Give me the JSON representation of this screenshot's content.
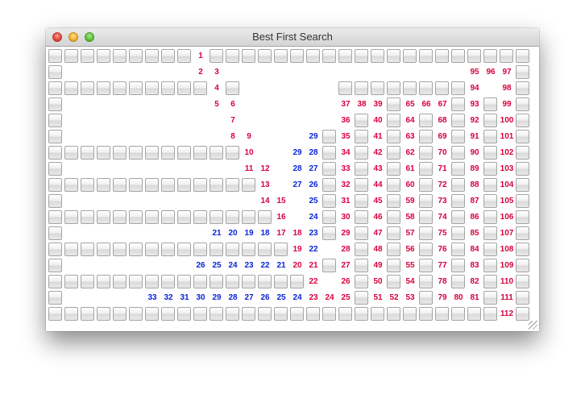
{
  "window": {
    "title": "Best First Search"
  },
  "colors": {
    "red": "#d8003c",
    "blue": "#0a24d6"
  },
  "legend": {
    "red_meaning": "red-label",
    "blue_meaning": "blue-label"
  },
  "rows": [
    "###########1##################.....###",
    "#..........23....................959697#",
    "#########..4#..........................#",
    "#..........56#..........................#"
  ],
  "grid": {
    "wall_rows": [
      "###################################.....###",
      "#............................#",
      "##########.##..##########.#",
      "#...........#.#.#.#.#.#.#.#.##",
      "##########.#..#.#.#.#.#.#.#.##",
      "#...........#.#.#.#.#.#.#.#.##"
    ]
  },
  "cells": [
    {
      "r": 0,
      "c": 9,
      "t": "1",
      "k": "red"
    },
    {
      "r": 1,
      "c": 9,
      "t": "2",
      "k": "red"
    },
    {
      "r": 1,
      "c": 10,
      "t": "3",
      "k": "red"
    },
    {
      "r": 1,
      "c": 26,
      "t": "95",
      "k": "red"
    },
    {
      "r": 1,
      "c": 27,
      "t": "96",
      "k": "red"
    },
    {
      "r": 1,
      "c": 28,
      "t": "97",
      "k": "red"
    },
    {
      "r": 2,
      "c": 10,
      "t": "4",
      "k": "red"
    },
    {
      "r": 2,
      "c": 26,
      "t": "94",
      "k": "red"
    },
    {
      "r": 2,
      "c": 28,
      "t": "98",
      "k": "red"
    },
    {
      "r": 3,
      "c": 10,
      "t": "5",
      "k": "red"
    },
    {
      "r": 3,
      "c": 11,
      "t": "6",
      "k": "red"
    },
    {
      "r": 3,
      "c": 18,
      "t": "37",
      "k": "red"
    },
    {
      "r": 3,
      "c": 19,
      "t": "38",
      "k": "red"
    },
    {
      "r": 3,
      "c": 20,
      "t": "39",
      "k": "red"
    },
    {
      "r": 3,
      "c": 22,
      "t": "65",
      "k": "red"
    },
    {
      "r": 3,
      "c": 23,
      "t": "66",
      "k": "red"
    },
    {
      "r": 3,
      "c": 24,
      "t": "67",
      "k": "red"
    },
    {
      "r": 3,
      "c": 26,
      "t": "93",
      "k": "red"
    },
    {
      "r": 3,
      "c": 28,
      "t": "99",
      "k": "red"
    },
    {
      "r": 4,
      "c": 11,
      "t": "7",
      "k": "red"
    },
    {
      "r": 4,
      "c": 18,
      "t": "36",
      "k": "red"
    },
    {
      "r": 4,
      "c": 20,
      "t": "40",
      "k": "red"
    },
    {
      "r": 4,
      "c": 22,
      "t": "64",
      "k": "red"
    },
    {
      "r": 4,
      "c": 24,
      "t": "68",
      "k": "red"
    },
    {
      "r": 4,
      "c": 26,
      "t": "92",
      "k": "red"
    },
    {
      "r": 4,
      "c": 28,
      "t": "100",
      "k": "red"
    },
    {
      "r": 5,
      "c": 11,
      "t": "8",
      "k": "red"
    },
    {
      "r": 5,
      "c": 12,
      "t": "9",
      "k": "red"
    },
    {
      "r": 5,
      "c": 16,
      "t": "29",
      "k": "blue"
    },
    {
      "r": 5,
      "c": 18,
      "t": "35",
      "k": "red"
    },
    {
      "r": 5,
      "c": 20,
      "t": "41",
      "k": "red"
    },
    {
      "r": 5,
      "c": 22,
      "t": "63",
      "k": "red"
    },
    {
      "r": 5,
      "c": 24,
      "t": "69",
      "k": "red"
    },
    {
      "r": 5,
      "c": 26,
      "t": "91",
      "k": "red"
    },
    {
      "r": 5,
      "c": 28,
      "t": "101",
      "k": "red"
    },
    {
      "r": 6,
      "c": 12,
      "t": "10",
      "k": "red"
    },
    {
      "r": 6,
      "c": 15,
      "t": "29",
      "k": "blue"
    },
    {
      "r": 6,
      "c": 16,
      "t": "28",
      "k": "blue"
    },
    {
      "r": 6,
      "c": 18,
      "t": "34",
      "k": "red"
    },
    {
      "r": 6,
      "c": 20,
      "t": "42",
      "k": "red"
    },
    {
      "r": 6,
      "c": 22,
      "t": "62",
      "k": "red"
    },
    {
      "r": 6,
      "c": 24,
      "t": "70",
      "k": "red"
    },
    {
      "r": 6,
      "c": 26,
      "t": "90",
      "k": "red"
    },
    {
      "r": 6,
      "c": 28,
      "t": "102",
      "k": "red"
    },
    {
      "r": 7,
      "c": 12,
      "t": "11",
      "k": "red"
    },
    {
      "r": 7,
      "c": 13,
      "t": "12",
      "k": "red"
    },
    {
      "r": 7,
      "c": 15,
      "t": "28",
      "k": "blue"
    },
    {
      "r": 7,
      "c": 16,
      "t": "27",
      "k": "blue"
    },
    {
      "r": 7,
      "c": 18,
      "t": "33",
      "k": "red"
    },
    {
      "r": 7,
      "c": 20,
      "t": "43",
      "k": "red"
    },
    {
      "r": 7,
      "c": 22,
      "t": "61",
      "k": "red"
    },
    {
      "r": 7,
      "c": 24,
      "t": "71",
      "k": "red"
    },
    {
      "r": 7,
      "c": 26,
      "t": "89",
      "k": "red"
    },
    {
      "r": 7,
      "c": 28,
      "t": "103",
      "k": "red"
    },
    {
      "r": 8,
      "c": 13,
      "t": "13",
      "k": "red"
    },
    {
      "r": 8,
      "c": 15,
      "t": "27",
      "k": "blue"
    },
    {
      "r": 8,
      "c": 16,
      "t": "26",
      "k": "blue"
    },
    {
      "r": 8,
      "c": 18,
      "t": "32",
      "k": "red"
    },
    {
      "r": 8,
      "c": 20,
      "t": "44",
      "k": "red"
    },
    {
      "r": 8,
      "c": 22,
      "t": "60",
      "k": "red"
    },
    {
      "r": 8,
      "c": 24,
      "t": "72",
      "k": "red"
    },
    {
      "r": 8,
      "c": 26,
      "t": "88",
      "k": "red"
    },
    {
      "r": 8,
      "c": 28,
      "t": "104",
      "k": "red"
    },
    {
      "r": 9,
      "c": 13,
      "t": "14",
      "k": "red"
    },
    {
      "r": 9,
      "c": 14,
      "t": "15",
      "k": "red"
    },
    {
      "r": 9,
      "c": 16,
      "t": "25",
      "k": "blue"
    },
    {
      "r": 9,
      "c": 18,
      "t": "31",
      "k": "red"
    },
    {
      "r": 9,
      "c": 20,
      "t": "45",
      "k": "red"
    },
    {
      "r": 9,
      "c": 22,
      "t": "59",
      "k": "red"
    },
    {
      "r": 9,
      "c": 24,
      "t": "73",
      "k": "red"
    },
    {
      "r": 9,
      "c": 26,
      "t": "87",
      "k": "red"
    },
    {
      "r": 9,
      "c": 28,
      "t": "105",
      "k": "red"
    },
    {
      "r": 10,
      "c": 14,
      "t": "16",
      "k": "red"
    },
    {
      "r": 10,
      "c": 16,
      "t": "24",
      "k": "blue"
    },
    {
      "r": 10,
      "c": 18,
      "t": "30",
      "k": "red"
    },
    {
      "r": 10,
      "c": 20,
      "t": "46",
      "k": "red"
    },
    {
      "r": 10,
      "c": 22,
      "t": "58",
      "k": "red"
    },
    {
      "r": 10,
      "c": 24,
      "t": "74",
      "k": "red"
    },
    {
      "r": 10,
      "c": 26,
      "t": "86",
      "k": "red"
    },
    {
      "r": 10,
      "c": 28,
      "t": "106",
      "k": "red"
    },
    {
      "r": 11,
      "c": 10,
      "t": "21",
      "k": "blue"
    },
    {
      "r": 11,
      "c": 11,
      "t": "20",
      "k": "blue"
    },
    {
      "r": 11,
      "c": 12,
      "t": "19",
      "k": "blue"
    },
    {
      "r": 11,
      "c": 13,
      "t": "18",
      "k": "blue"
    },
    {
      "r": 11,
      "c": 14,
      "t": "17",
      "k": "red"
    },
    {
      "r": 11,
      "c": 15,
      "t": "18",
      "k": "red"
    },
    {
      "r": 11,
      "c": 16,
      "t": "23",
      "k": "blue"
    },
    {
      "r": 11,
      "c": 18,
      "t": "29",
      "k": "red"
    },
    {
      "r": 11,
      "c": 20,
      "t": "47",
      "k": "red"
    },
    {
      "r": 11,
      "c": 22,
      "t": "57",
      "k": "red"
    },
    {
      "r": 11,
      "c": 24,
      "t": "75",
      "k": "red"
    },
    {
      "r": 11,
      "c": 26,
      "t": "85",
      "k": "red"
    },
    {
      "r": 11,
      "c": 28,
      "t": "107",
      "k": "red"
    },
    {
      "r": 12,
      "c": 15,
      "t": "19",
      "k": "red"
    },
    {
      "r": 12,
      "c": 16,
      "t": "22",
      "k": "blue"
    },
    {
      "r": 12,
      "c": 18,
      "t": "28",
      "k": "red"
    },
    {
      "r": 12,
      "c": 20,
      "t": "48",
      "k": "red"
    },
    {
      "r": 12,
      "c": 22,
      "t": "56",
      "k": "red"
    },
    {
      "r": 12,
      "c": 24,
      "t": "76",
      "k": "red"
    },
    {
      "r": 12,
      "c": 26,
      "t": "84",
      "k": "red"
    },
    {
      "r": 12,
      "c": 28,
      "t": "108",
      "k": "red"
    },
    {
      "r": 13,
      "c": 9,
      "t": "26",
      "k": "blue"
    },
    {
      "r": 13,
      "c": 10,
      "t": "25",
      "k": "blue"
    },
    {
      "r": 13,
      "c": 11,
      "t": "24",
      "k": "blue"
    },
    {
      "r": 13,
      "c": 12,
      "t": "23",
      "k": "blue"
    },
    {
      "r": 13,
      "c": 13,
      "t": "22",
      "k": "blue"
    },
    {
      "r": 13,
      "c": 14,
      "t": "21",
      "k": "blue"
    },
    {
      "r": 13,
      "c": 15,
      "t": "20",
      "k": "red"
    },
    {
      "r": 13,
      "c": 16,
      "t": "21",
      "k": "red"
    },
    {
      "r": 13,
      "c": 18,
      "t": "27",
      "k": "red"
    },
    {
      "r": 13,
      "c": 20,
      "t": "49",
      "k": "red"
    },
    {
      "r": 13,
      "c": 22,
      "t": "55",
      "k": "red"
    },
    {
      "r": 13,
      "c": 24,
      "t": "77",
      "k": "red"
    },
    {
      "r": 13,
      "c": 26,
      "t": "83",
      "k": "red"
    },
    {
      "r": 13,
      "c": 28,
      "t": "109",
      "k": "red"
    },
    {
      "r": 14,
      "c": 16,
      "t": "22",
      "k": "red"
    },
    {
      "r": 14,
      "c": 18,
      "t": "26",
      "k": "red"
    },
    {
      "r": 14,
      "c": 20,
      "t": "50",
      "k": "red"
    },
    {
      "r": 14,
      "c": 22,
      "t": "54",
      "k": "red"
    },
    {
      "r": 14,
      "c": 24,
      "t": "78",
      "k": "red"
    },
    {
      "r": 14,
      "c": 26,
      "t": "82",
      "k": "red"
    },
    {
      "r": 14,
      "c": 28,
      "t": "110",
      "k": "red"
    },
    {
      "r": 15,
      "c": 6,
      "t": "33",
      "k": "blue"
    },
    {
      "r": 15,
      "c": 7,
      "t": "32",
      "k": "blue"
    },
    {
      "r": 15,
      "c": 8,
      "t": "31",
      "k": "blue"
    },
    {
      "r": 15,
      "c": 9,
      "t": "30",
      "k": "blue"
    },
    {
      "r": 15,
      "c": 10,
      "t": "29",
      "k": "blue"
    },
    {
      "r": 15,
      "c": 11,
      "t": "28",
      "k": "blue"
    },
    {
      "r": 15,
      "c": 12,
      "t": "27",
      "k": "blue"
    },
    {
      "r": 15,
      "c": 13,
      "t": "26",
      "k": "blue"
    },
    {
      "r": 15,
      "c": 14,
      "t": "25",
      "k": "blue"
    },
    {
      "r": 15,
      "c": 15,
      "t": "24",
      "k": "blue"
    },
    {
      "r": 15,
      "c": 16,
      "t": "23",
      "k": "red"
    },
    {
      "r": 15,
      "c": 17,
      "t": "24",
      "k": "red"
    },
    {
      "r": 15,
      "c": 18,
      "t": "25",
      "k": "red"
    },
    {
      "r": 15,
      "c": 20,
      "t": "51",
      "k": "red"
    },
    {
      "r": 15,
      "c": 21,
      "t": "52",
      "k": "red"
    },
    {
      "r": 15,
      "c": 22,
      "t": "53",
      "k": "red"
    },
    {
      "r": 15,
      "c": 24,
      "t": "79",
      "k": "red"
    },
    {
      "r": 15,
      "c": 25,
      "t": "80",
      "k": "red"
    },
    {
      "r": 15,
      "c": 26,
      "t": "81",
      "k": "red"
    },
    {
      "r": 15,
      "c": 28,
      "t": "111",
      "k": "red"
    },
    {
      "r": 16,
      "c": 28,
      "t": "112",
      "k": "red"
    }
  ]
}
